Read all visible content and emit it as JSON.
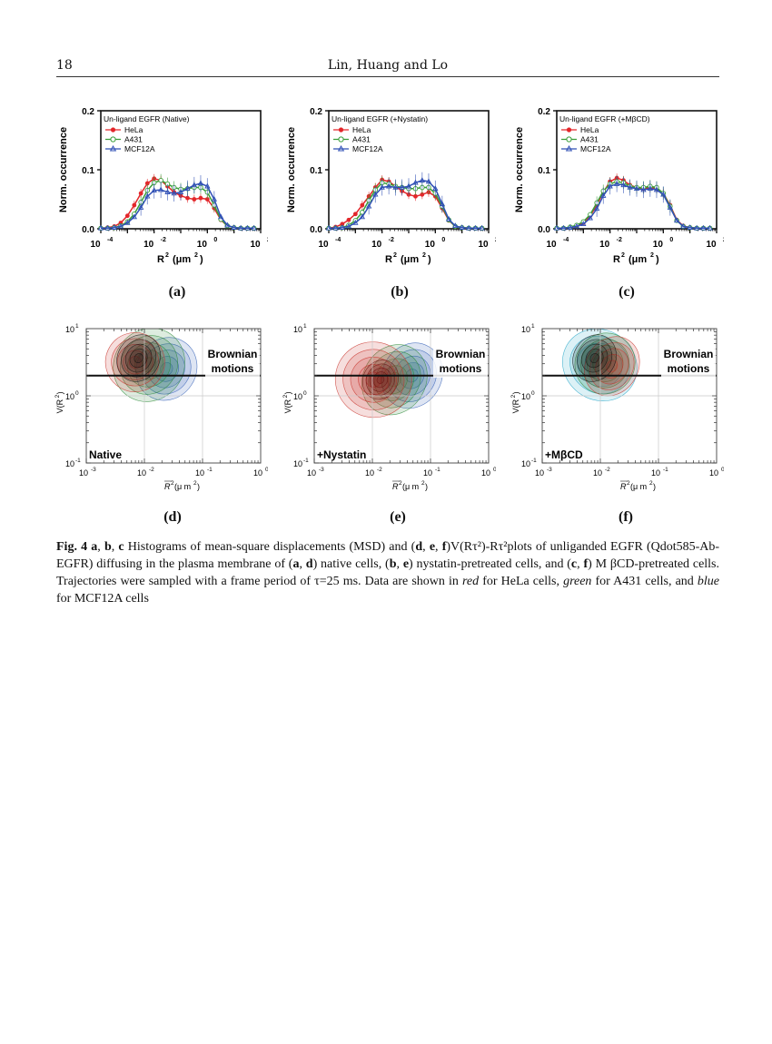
{
  "header": {
    "page_number": "18",
    "running_title": "Lin, Huang and Lo"
  },
  "colors": {
    "hela": "#e3262a",
    "a431": "#3a9e3a",
    "mcf12a": "#2f4fb5",
    "grid": "#bdbdbd"
  },
  "histogram_panels": [
    {
      "label": "(a)",
      "legend_title": "Un-ligand EGFR (Native)"
    },
    {
      "label": "(b)",
      "legend_title": "Un-ligand EGFR (+Nystatin)"
    },
    {
      "label": "(c)",
      "legend_title": "Un-ligand EGFR (+MβCD)"
    }
  ],
  "histogram_axes": {
    "ylabel": "Norm. occurrence",
    "xlabel": "R",
    "xlabel_sup": "2",
    "xlabel_unit": "(μm",
    "xlabel_unit_sup": "2",
    "xlabel_close": ")",
    "y_ticks": [
      "0.0",
      "0.1",
      "0.2"
    ],
    "x_tick_base": "10",
    "x_tick_exps": [
      "-4",
      "-2",
      "0",
      "2"
    ]
  },
  "legend_entries": [
    "HeLa",
    "A431",
    "MCF12A"
  ],
  "density_panels": [
    {
      "label": "(d)",
      "condition": "Native"
    },
    {
      "label": "(e)",
      "condition": "+Nystatin"
    },
    {
      "label": "(f)",
      "condition": "+MβCD"
    }
  ],
  "density_axes": {
    "ylabel": "V(R",
    "ylabel_sup": "2",
    "ylabel_close": ")",
    "xlabel": "R",
    "xlabel_sup": "2",
    "xlabel_unit": "(μ m",
    "xlabel_unit_sup": "2",
    "xlabel_close": ")",
    "brownian_line1": "Brownian",
    "brownian_line2": "motions",
    "y_tick_base": "10",
    "y_tick_exps": [
      "1",
      "0",
      "-1"
    ],
    "x_tick_base": "10",
    "x_tick_exps": [
      "-3",
      "-2",
      "-1",
      "0"
    ]
  },
  "caption": {
    "fig": "Fig. 4",
    "p1": "a",
    "c1": ", ",
    "p2": "b",
    "c2": ", ",
    "p3": "c",
    "t1": " Histograms of mean-square displacements (MSD) and (",
    "p4": "d",
    "c3": ", ",
    "p5": "e",
    "c4": ", ",
    "p6": "f",
    "t2": ")V(Rτ²)-Rτ²plots of unliganded EGFR (Qdot585-Ab-EGFR) diffusing in the plasma membrane of (",
    "p7": "a",
    "c5": ", ",
    "p8": "d",
    "t3": ") native cells, (",
    "p9": "b",
    "c6": ", ",
    "p10": "e",
    "t4": ") nystatin-pretreated cells, and (",
    "p11": "c",
    "c7": ", ",
    "p12": "f",
    "t5": ") M βCD-pretreated cells. Trajectories were sampled with a frame period of τ=25 ms. Data are shown in ",
    "red": "red",
    "t6": " for HeLa cells, ",
    "green": "green",
    "t7": " for A431 cells, and ",
    "blue": "blue",
    "t8": " for MCF12A cells"
  },
  "chart_data": [
    {
      "type": "line",
      "panel": "a",
      "title": "Un-ligand EGFR (Native)",
      "xlabel": "R2 (μm2)",
      "ylabel": "Norm. occurrence",
      "x_scale": "log",
      "xlim": [
        0.0001,
        100
      ],
      "ylim": [
        0,
        0.2
      ],
      "x": [
        0.0001,
        0.00018,
        0.00032,
        0.00056,
        0.001,
        0.0018,
        0.0032,
        0.0056,
        0.01,
        0.018,
        0.032,
        0.056,
        0.1,
        0.18,
        0.32,
        0.56,
        1,
        1.8,
        3.2,
        5.6,
        10,
        18,
        32,
        56
      ],
      "series": [
        {
          "name": "HeLa",
          "values": [
            0.001,
            0.002,
            0.004,
            0.01,
            0.022,
            0.04,
            0.06,
            0.077,
            0.085,
            0.082,
            0.072,
            0.062,
            0.056,
            0.052,
            0.05,
            0.052,
            0.05,
            0.035,
            0.015,
            0.005,
            0.002,
            0.001,
            0.001,
            0.001
          ]
        },
        {
          "name": "A431",
          "values": [
            0.001,
            0.001,
            0.002,
            0.005,
            0.012,
            0.025,
            0.045,
            0.065,
            0.078,
            0.082,
            0.076,
            0.07,
            0.067,
            0.068,
            0.07,
            0.07,
            0.062,
            0.04,
            0.016,
            0.005,
            0.002,
            0.001,
            0.001,
            0.001
          ]
        },
        {
          "name": "MCF12A",
          "values": [
            0.001,
            0.001,
            0.002,
            0.004,
            0.01,
            0.02,
            0.036,
            0.055,
            0.065,
            0.066,
            0.062,
            0.06,
            0.062,
            0.068,
            0.074,
            0.077,
            0.072,
            0.05,
            0.02,
            0.006,
            0.002,
            0.001,
            0.001,
            0.001
          ]
        }
      ]
    },
    {
      "type": "line",
      "panel": "b",
      "title": "Un-ligand EGFR (+Nystatin)",
      "xlabel": "R2 (μm2)",
      "ylabel": "Norm. occurrence",
      "x_scale": "log",
      "xlim": [
        0.0001,
        100
      ],
      "ylim": [
        0,
        0.2
      ],
      "x": [
        0.0001,
        0.00018,
        0.00032,
        0.00056,
        0.001,
        0.0018,
        0.0032,
        0.0056,
        0.01,
        0.018,
        0.032,
        0.056,
        0.1,
        0.18,
        0.32,
        0.56,
        1,
        1.8,
        3.2,
        5.6,
        10,
        18,
        32,
        56
      ],
      "series": [
        {
          "name": "HeLa",
          "values": [
            0.001,
            0.003,
            0.008,
            0.015,
            0.025,
            0.04,
            0.055,
            0.07,
            0.083,
            0.08,
            0.072,
            0.064,
            0.058,
            0.055,
            0.058,
            0.062,
            0.055,
            0.035,
            0.014,
            0.004,
            0.002,
            0.001,
            0.001,
            0.001
          ]
        },
        {
          "name": "A431",
          "values": [
            0.001,
            0.001,
            0.002,
            0.006,
            0.014,
            0.028,
            0.048,
            0.066,
            0.078,
            0.076,
            0.072,
            0.07,
            0.068,
            0.068,
            0.07,
            0.07,
            0.06,
            0.038,
            0.015,
            0.004,
            0.002,
            0.001,
            0.001,
            0.001
          ]
        },
        {
          "name": "MCF12A",
          "values": [
            0.001,
            0.001,
            0.002,
            0.004,
            0.01,
            0.02,
            0.038,
            0.058,
            0.07,
            0.072,
            0.07,
            0.07,
            0.072,
            0.078,
            0.082,
            0.08,
            0.068,
            0.042,
            0.016,
            0.005,
            0.002,
            0.001,
            0.001,
            0.001
          ]
        }
      ]
    },
    {
      "type": "line",
      "panel": "c",
      "title": "Un-ligand EGFR (+MβCD)",
      "xlabel": "R2 (μm2)",
      "ylabel": "Norm. occurrence",
      "x_scale": "log",
      "xlim": [
        0.0001,
        100
      ],
      "ylim": [
        0,
        0.2
      ],
      "x": [
        0.0001,
        0.00018,
        0.00032,
        0.00056,
        0.001,
        0.0018,
        0.0032,
        0.0056,
        0.01,
        0.018,
        0.032,
        0.056,
        0.1,
        0.18,
        0.32,
        0.56,
        1,
        1.8,
        3.2,
        5.6,
        10,
        18,
        32,
        56
      ],
      "series": [
        {
          "name": "HeLa",
          "values": [
            0.001,
            0.001,
            0.002,
            0.004,
            0.01,
            0.022,
            0.04,
            0.062,
            0.08,
            0.086,
            0.082,
            0.074,
            0.07,
            0.068,
            0.07,
            0.068,
            0.06,
            0.04,
            0.015,
            0.005,
            0.002,
            0.001,
            0.001,
            0.001
          ]
        },
        {
          "name": "A431",
          "values": [
            0.001,
            0.001,
            0.003,
            0.006,
            0.012,
            0.024,
            0.044,
            0.064,
            0.076,
            0.08,
            0.078,
            0.072,
            0.07,
            0.07,
            0.072,
            0.07,
            0.06,
            0.038,
            0.014,
            0.004,
            0.002,
            0.001,
            0.001,
            0.001
          ]
        },
        {
          "name": "MCF12A",
          "values": [
            0.001,
            0.001,
            0.002,
            0.004,
            0.008,
            0.018,
            0.034,
            0.056,
            0.072,
            0.076,
            0.074,
            0.07,
            0.068,
            0.066,
            0.068,
            0.066,
            0.058,
            0.036,
            0.014,
            0.004,
            0.002,
            0.001,
            0.001,
            0.001
          ]
        }
      ]
    }
  ]
}
